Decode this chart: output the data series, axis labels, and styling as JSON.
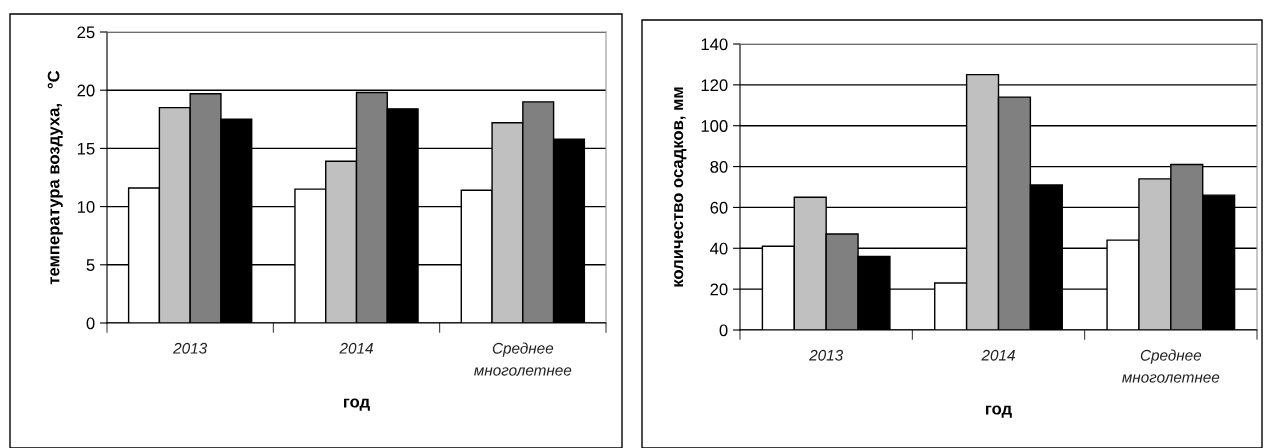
{
  "chart_data": [
    {
      "type": "bar",
      "xlabel": "год",
      "ylabel": "температура воздуха,   °С",
      "categories": [
        "2013",
        "2014",
        "Среднее\nмноголетнее"
      ],
      "series": [
        {
          "color": "#ffffff",
          "values": [
            11.6,
            11.5,
            11.4
          ]
        },
        {
          "color": "#c0c0c0",
          "values": [
            18.5,
            13.9,
            17.2
          ]
        },
        {
          "color": "#808080",
          "values": [
            19.7,
            19.8,
            19.0
          ]
        },
        {
          "color": "#000000",
          "values": [
            17.5,
            18.4,
            15.8
          ]
        }
      ],
      "ylim": [
        0,
        25
      ],
      "yticks": [
        0,
        5,
        10,
        15,
        20,
        25
      ],
      "grid": "y",
      "legend": false
    },
    {
      "type": "bar",
      "xlabel": "год",
      "ylabel": "количество осадков, мм",
      "categories": [
        "2013",
        "2014",
        "Среднее\nмноголетнее"
      ],
      "series": [
        {
          "color": "#ffffff",
          "values": [
            41,
            23,
            44
          ]
        },
        {
          "color": "#c0c0c0",
          "values": [
            65,
            125,
            74
          ]
        },
        {
          "color": "#808080",
          "values": [
            47,
            114,
            81
          ]
        },
        {
          "color": "#000000",
          "values": [
            36,
            71,
            66
          ]
        }
      ],
      "ylim": [
        0,
        140
      ],
      "yticks": [
        0,
        20,
        40,
        60,
        80,
        100,
        120,
        140
      ],
      "grid": "y",
      "legend": false
    }
  ]
}
